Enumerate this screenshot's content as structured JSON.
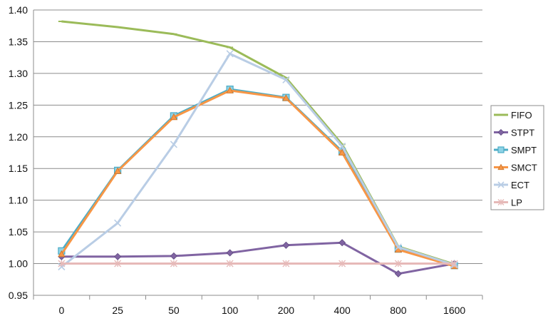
{
  "chart_data": {
    "type": "line",
    "title": "",
    "xlabel": "",
    "ylabel": "",
    "categories": [
      "0",
      "25",
      "50",
      "100",
      "200",
      "400",
      "800",
      "1600"
    ],
    "ylim": [
      0.95,
      1.4
    ],
    "yticks": [
      "0.95",
      "1.00",
      "1.05",
      "1.10",
      "1.15",
      "1.20",
      "1.25",
      "1.30",
      "1.35",
      "1.40"
    ],
    "grid": true,
    "legend_position": "right",
    "series": [
      {
        "name": "FIFO",
        "color": "#9BBB59",
        "marker": "dash",
        "values": [
          1.382,
          1.373,
          1.362,
          1.341,
          1.293,
          1.188,
          1.027,
          0.999
        ]
      },
      {
        "name": "STPT",
        "color": "#8064A2",
        "marker": "diamond",
        "values": [
          1.011,
          1.011,
          1.012,
          1.017,
          1.029,
          1.033,
          0.984,
          1.0
        ]
      },
      {
        "name": "SMPT",
        "color": "#4BACC6",
        "marker": "square",
        "values": [
          1.02,
          1.147,
          1.233,
          1.275,
          1.262,
          1.177,
          1.023,
          0.997
        ]
      },
      {
        "name": "SMCT",
        "color": "#F79646",
        "marker": "triangle",
        "values": [
          1.015,
          1.146,
          1.231,
          1.273,
          1.261,
          1.175,
          1.022,
          0.996
        ]
      },
      {
        "name": "ECT",
        "color": "#B9CDE5",
        "marker": "x",
        "values": [
          0.995,
          1.064,
          1.188,
          1.331,
          1.29,
          1.185,
          1.026,
          0.998
        ]
      },
      {
        "name": "LP",
        "color": "#E6B9B8",
        "marker": "star",
        "values": [
          1.0,
          1.0,
          1.0,
          1.0,
          1.0,
          1.0,
          1.0,
          1.0
        ]
      }
    ]
  }
}
